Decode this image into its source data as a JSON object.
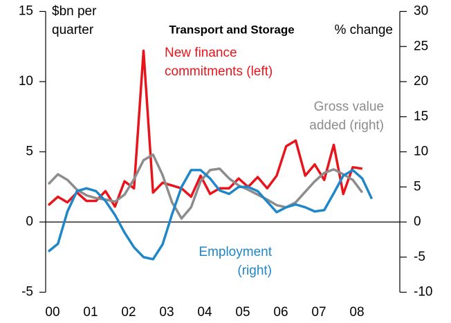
{
  "chart_data": {
    "type": "line",
    "title": "Transport and Storage",
    "y_label": [
      "$bn per",
      "quarter"
    ],
    "y2_label": "% change",
    "categories": [
      "00",
      null,
      null,
      null,
      "01",
      null,
      null,
      null,
      "02",
      null,
      null,
      null,
      "03",
      null,
      null,
      null,
      "04",
      null,
      null,
      null,
      "05",
      null,
      null,
      null,
      "06",
      null,
      null,
      null,
      "07",
      null,
      null,
      null,
      "08",
      null,
      null
    ],
    "ylim": [
      -5,
      15
    ],
    "yticks": [
      -5,
      0,
      5,
      10,
      15
    ],
    "y2lim": [
      -10,
      30
    ],
    "y2ticks": [
      -10,
      -5,
      0,
      5,
      10,
      15,
      20,
      25,
      30
    ],
    "series": [
      {
        "name": "New finance commitments (left)",
        "color": "#e8141b",
        "axis": "y",
        "values": [
          1.2,
          1.8,
          1.4,
          2.1,
          1.5,
          1.5,
          2.2,
          1.1,
          2.9,
          2.4,
          12.2,
          2.1,
          2.8,
          2.6,
          2.4,
          1.8,
          3.3,
          2.0,
          2.4,
          2.4,
          3.1,
          2.5,
          3.2,
          2.4,
          3.3,
          5.4,
          5.8,
          3.3,
          4.1,
          3.0,
          5.5,
          2.0,
          3.9,
          3.8,
          null
        ]
      },
      {
        "name": "Gross value added (right)",
        "color": "#8c8c8c",
        "axis": "y2",
        "values": [
          5.4,
          6.8,
          6.0,
          4.6,
          3.8,
          3.4,
          3.2,
          2.9,
          3.9,
          6.1,
          8.8,
          9.6,
          6.7,
          2.8,
          0.5,
          2.1,
          5.8,
          7.4,
          7.6,
          6.2,
          5.2,
          4.6,
          3.9,
          3.2,
          2.4,
          2.1,
          2.8,
          4.3,
          5.8,
          7.0,
          7.5,
          6.8,
          6.0,
          4.2,
          null
        ]
      },
      {
        "name": "Employment (right)",
        "color": "#1f86c8",
        "axis": "y2",
        "values": [
          -4.2,
          -3.1,
          1.5,
          4.4,
          4.8,
          4.4,
          3.0,
          1.0,
          -1.5,
          -3.6,
          -5.0,
          -5.3,
          -3.2,
          1.1,
          5.0,
          7.4,
          7.4,
          6.2,
          4.5,
          4.0,
          5.0,
          5.0,
          4.4,
          2.9,
          1.4,
          2.1,
          2.5,
          2.1,
          1.5,
          1.7,
          4.1,
          6.6,
          7.4,
          6.2,
          3.3
        ]
      }
    ],
    "annotations": [
      {
        "text": [
          "New finance",
          "commitments (left)"
        ],
        "color": "#e8141b"
      },
      {
        "text": [
          "Gross value",
          "added (right)"
        ],
        "color": "#8c8c8c"
      },
      {
        "text": [
          "Employment",
          "(right)"
        ],
        "color": "#1f86c8"
      }
    ]
  }
}
